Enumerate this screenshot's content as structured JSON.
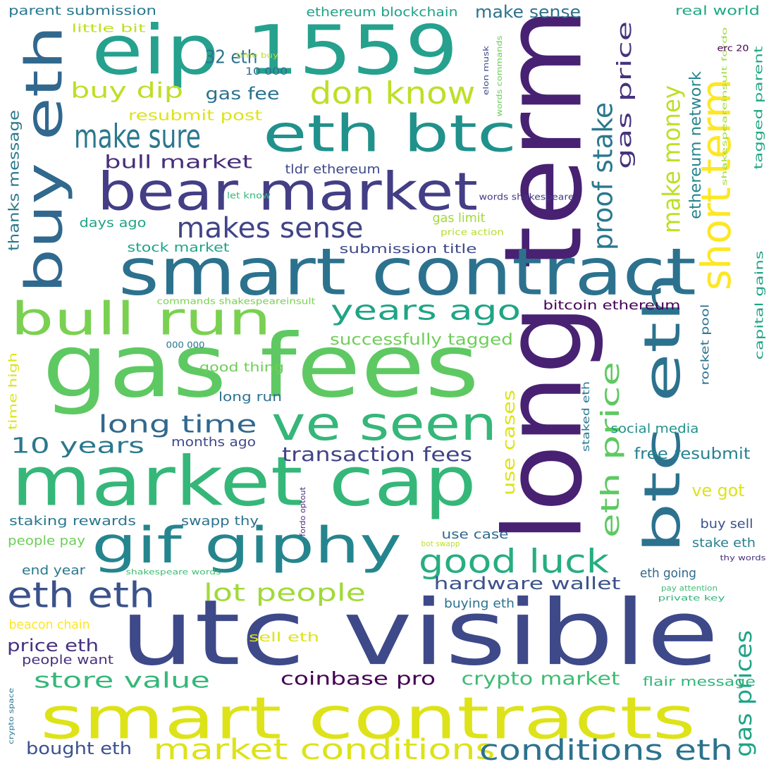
{
  "words": [
    {
      "text": "long term",
      "color": "#482173"
    },
    {
      "text": "utc visible",
      "color": "#3e4989"
    },
    {
      "text": "gas fees",
      "color": "#5ec962"
    },
    {
      "text": "eip 1559",
      "color": "#25a18e"
    },
    {
      "text": "smart contract",
      "color": "#2c728e"
    },
    {
      "text": "market cap",
      "color": "#35b779"
    },
    {
      "text": "smart contracts",
      "color": "#dde318"
    },
    {
      "text": "bear market",
      "color": "#433e85"
    },
    {
      "text": "buy eth",
      "color": "#31688e"
    },
    {
      "text": "eth btc",
      "color": "#21918c"
    },
    {
      "text": "btc eth",
      "color": "#2c728e"
    },
    {
      "text": "gif giphy",
      "color": "#25858e"
    },
    {
      "text": "bull run",
      "color": "#7ad151"
    },
    {
      "text": "ve seen",
      "color": "#35b779"
    },
    {
      "text": "short term",
      "color": "#fde725"
    },
    {
      "text": "eth eth",
      "color": "#3b528b"
    },
    {
      "text": "make sure",
      "color": "#2a788e"
    },
    {
      "text": "good luck",
      "color": "#27ad81"
    },
    {
      "text": "makes sense",
      "color": "#414487"
    },
    {
      "text": "don know",
      "color": "#bddf26"
    },
    {
      "text": "market conditions",
      "color": "#dde318"
    },
    {
      "text": "conditions eth",
      "color": "#2c728e"
    },
    {
      "text": "years ago",
      "color": "#20a486"
    },
    {
      "text": "proof stake",
      "color": "#2a788e"
    },
    {
      "text": "make money",
      "color": "#bddf26"
    },
    {
      "text": "eth price",
      "color": "#5ec962"
    },
    {
      "text": "lot people",
      "color": "#a0da39"
    },
    {
      "text": "long time",
      "color": "#31688e"
    },
    {
      "text": "10 years",
      "color": "#2a788e"
    },
    {
      "text": "gas prices",
      "color": "#20a486"
    },
    {
      "text": "transaction fees",
      "color": "#414487"
    },
    {
      "text": "gas price",
      "color": "#46327e"
    },
    {
      "text": "store value",
      "color": "#35b779"
    },
    {
      "text": "buy dip",
      "color": "#bddf26"
    },
    {
      "text": "32 eth",
      "color": "#2c728e"
    },
    {
      "text": "bull market",
      "color": "#472d7b"
    },
    {
      "text": "coinbase pro",
      "color": "#440154"
    },
    {
      "text": "crypto market",
      "color": "#3fbc73"
    },
    {
      "text": "hardware wallet",
      "color": "#3b528b"
    },
    {
      "text": "gas fee",
      "color": "#2c728e"
    },
    {
      "text": "make sense",
      "color": "#2c728e"
    },
    {
      "text": "use cases",
      "color": "#dde318"
    },
    {
      "text": "ve got",
      "color": "#dde318"
    },
    {
      "text": "price eth",
      "color": "#46327e"
    },
    {
      "text": "bought eth",
      "color": "#3b528b"
    },
    {
      "text": "free resubmit",
      "color": "#26828e"
    },
    {
      "text": "ethereum network",
      "color": "#25858e"
    },
    {
      "text": "successfully tagged",
      "color": "#6ece58"
    },
    {
      "text": "thanks message",
      "color": "#2a788e"
    },
    {
      "text": "resubmit post",
      "color": "#dde318"
    },
    {
      "text": "tldr ethereum",
      "color": "#3e4989"
    },
    {
      "text": "parent submission",
      "color": "#2a788e"
    },
    {
      "text": "ethereum blockchain",
      "color": "#1fa188"
    },
    {
      "text": "real world",
      "color": "#22a884"
    },
    {
      "text": "stock market",
      "color": "#20a486"
    },
    {
      "text": "submission title",
      "color": "#3e4989"
    },
    {
      "text": "bitcoin ethereum",
      "color": "#440154"
    },
    {
      "text": "social media",
      "color": "#21918c"
    },
    {
      "text": "staking rewards",
      "color": "#2a788e"
    },
    {
      "text": "swapp thy",
      "color": "#2c728e"
    },
    {
      "text": "people pay",
      "color": "#6ece58"
    },
    {
      "text": "use case",
      "color": "#31688e"
    },
    {
      "text": "buy sell",
      "color": "#3b528b"
    },
    {
      "text": "stake eth",
      "color": "#26828e"
    },
    {
      "text": "eth going",
      "color": "#31688e"
    },
    {
      "text": "buying eth",
      "color": "#2c728e"
    },
    {
      "text": "end year",
      "color": "#2a788e"
    },
    {
      "text": "flair message",
      "color": "#31b57b"
    },
    {
      "text": "sell eth",
      "color": "#dde318"
    },
    {
      "text": "people want",
      "color": "#46327e"
    },
    {
      "text": "beacon chain",
      "color": "#fde725"
    },
    {
      "text": "long run",
      "color": "#2c728e"
    },
    {
      "text": "good thing",
      "color": "#6ece58"
    },
    {
      "text": "months ago",
      "color": "#3e4989"
    },
    {
      "text": "days ago",
      "color": "#20a486"
    },
    {
      "text": "gas limit",
      "color": "#a0da39"
    },
    {
      "text": "capital gains",
      "color": "#20a486"
    },
    {
      "text": "rocket pool",
      "color": "#2c728e"
    },
    {
      "text": "tagged parent",
      "color": "#22a884"
    },
    {
      "text": "little bit",
      "color": "#bddf26"
    },
    {
      "text": "time high",
      "color": "#dde318"
    },
    {
      "text": "staked eth",
      "color": "#2a788e"
    },
    {
      "text": "10 000",
      "color": "#31688e"
    },
    {
      "text": "price action",
      "color": "#b5de2b"
    },
    {
      "text": "let know",
      "color": "#35b779"
    },
    {
      "text": "words shakespeare",
      "color": "#443a83"
    },
    {
      "text": "commands shakespeareinsult",
      "color": "#7ad151"
    },
    {
      "text": "000 000",
      "color": "#2a788e"
    },
    {
      "text": "time buy",
      "color": "#bddf26"
    },
    {
      "text": "elon musk",
      "color": "#3e4989"
    },
    {
      "text": "words commands",
      "color": "#6ece58"
    },
    {
      "text": "shakespeareinsult fordo",
      "color": "#a0da39"
    },
    {
      "text": "erc 20",
      "color": "#440154"
    },
    {
      "text": "fordo optout",
      "color": "#482878"
    },
    {
      "text": "bot swapp",
      "color": "#bddf26"
    },
    {
      "text": "shakespeare words",
      "color": "#3fbc73"
    },
    {
      "text": "thy words",
      "color": "#46327e"
    },
    {
      "text": "pay attention",
      "color": "#3fbc73"
    },
    {
      "text": "private key",
      "color": "#31b57b"
    },
    {
      "text": "crypto space",
      "color": "#2a788e"
    }
  ]
}
